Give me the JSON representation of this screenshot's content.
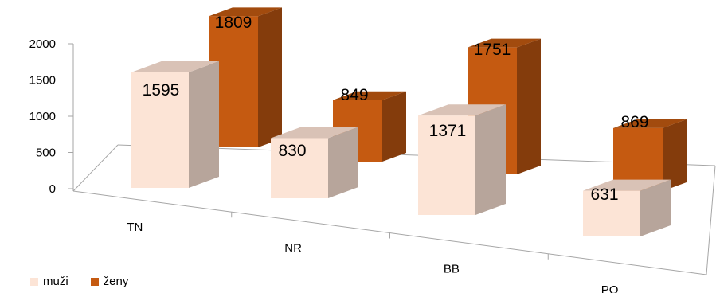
{
  "chart_data": {
    "type": "bar",
    "style": "3d-clustered-column",
    "categories": [
      "TN",
      "NR",
      "BB",
      "PO"
    ],
    "series": [
      {
        "name": "muži",
        "values": [
          1595,
          830,
          1371,
          631
        ],
        "color": "#FCE4D6",
        "side_color": "#B7A59B",
        "top_color": "#D9C2B6"
      },
      {
        "name": "ženy",
        "values": [
          1809,
          849,
          1751,
          869
        ],
        "color": "#C55A11",
        "side_color": "#843C0C",
        "top_color": "#A24B0E"
      }
    ],
    "y_ticks": [
      "0",
      "500",
      "1000",
      "1500",
      "2000"
    ],
    "ylim": [
      0,
      2000
    ],
    "data_labels": true,
    "legend_position": "bottom-left"
  }
}
